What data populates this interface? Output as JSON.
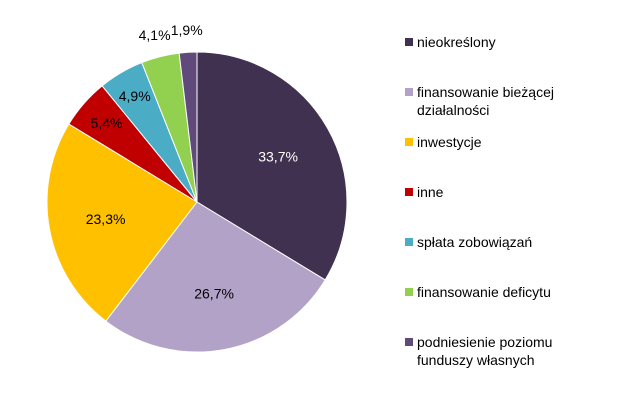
{
  "chart_data": {
    "type": "pie",
    "series": [
      {
        "name": "nieokreślony",
        "value": 33.7,
        "label": "33,7%",
        "color": "#403151"
      },
      {
        "name": "finansowanie bieżącej działalności",
        "value": 26.7,
        "label": "26,7%",
        "color": "#B3A2C7"
      },
      {
        "name": "inwestycje",
        "value": 23.3,
        "label": "23,3%",
        "color": "#FFC000"
      },
      {
        "name": "inne",
        "value": 5.4,
        "label": "5,4%",
        "color": "#C00000"
      },
      {
        "name": "spłata zobowiązań",
        "value": 4.9,
        "label": "4,9%",
        "color": "#4BACC6"
      },
      {
        "name": "finansowanie deficytu",
        "value": 4.1,
        "label": "4,1%",
        "color": "#92D050"
      },
      {
        "name": "podniesienie poziomu funduszy własnych",
        "value": 1.9,
        "label": "1,9%",
        "color": "#604A7B"
      }
    ],
    "legend": {
      "position": "right",
      "entries": [
        {
          "lines": [
            "nieokreślony"
          ]
        },
        {
          "lines": [
            "finansowanie bieżącej",
            "działalności"
          ]
        },
        {
          "lines": [
            "inwestycje"
          ]
        },
        {
          "lines": [
            "inne"
          ]
        },
        {
          "lines": [
            "spłata zobowiązań"
          ]
        },
        {
          "lines": [
            "finansowanie deficytu"
          ]
        },
        {
          "lines": [
            "podniesienie poziomu",
            "funduszy własnych"
          ]
        }
      ]
    }
  }
}
